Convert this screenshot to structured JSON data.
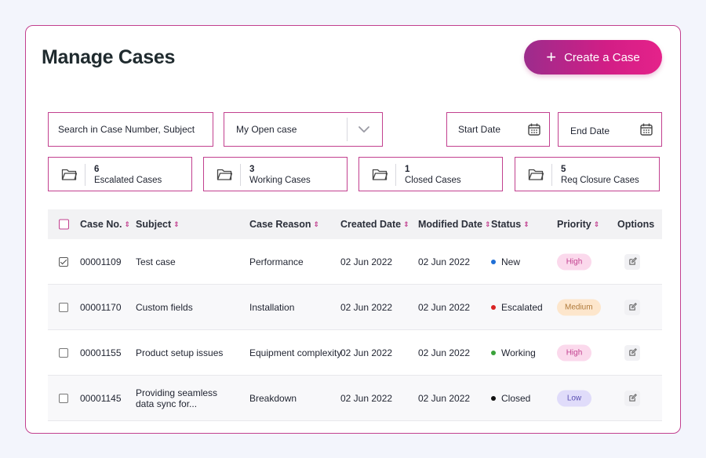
{
  "header": {
    "title": "Manage Cases",
    "create_button_label": "Create a Case"
  },
  "filters": {
    "search_placeholder": "Search in Case Number, Subject",
    "view_select_value": "My Open case",
    "start_date_label": "Start Date",
    "end_date_label": "End Date"
  },
  "stats": [
    {
      "count": "6",
      "label": "Escalated Cases"
    },
    {
      "count": "3",
      "label": "Working Cases"
    },
    {
      "count": "1",
      "label": "Closed Cases"
    },
    {
      "count": "5",
      "label": "Req Closure Cases"
    }
  ],
  "table": {
    "columns": {
      "case_no": "Case No.",
      "subject": "Subject",
      "case_reason": "Case Reason",
      "created_date": "Created Date",
      "modified_date": "Modified Date",
      "status": "Status",
      "priority": "Priority",
      "options": "Options"
    },
    "rows": [
      {
        "checked": true,
        "case_no": "00001109",
        "subject": "Test case",
        "reason": "Performance",
        "created": "02 Jun 2022",
        "modified": "02 Jun 2022",
        "status": "New",
        "priority": "High"
      },
      {
        "checked": false,
        "case_no": "00001170",
        "subject": "Custom fields",
        "reason": "Installation",
        "created": "02 Jun 2022",
        "modified": "02 Jun 2022",
        "status": "Escalated",
        "priority": "Medium"
      },
      {
        "checked": false,
        "case_no": "00001155",
        "subject": "Product setup issues",
        "reason": "Equipment complexity",
        "created": "02 Jun 2022",
        "modified": "02 Jun 2022",
        "status": "Working",
        "priority": "High"
      },
      {
        "checked": false,
        "case_no": "00001145",
        "subject": "Providing seamless data sync for...",
        "reason": "Breakdown",
        "created": "02 Jun 2022",
        "modified": "02 Jun 2022",
        "status": "Closed",
        "priority": "Low"
      }
    ]
  },
  "colors": {
    "accent": "#c2408f",
    "status_new": "#1f6fd6",
    "status_escalated": "#d92323",
    "status_working": "#3aa23a",
    "status_closed": "#111111",
    "priority_high_bg": "#fbd9ec",
    "priority_high_text": "#c2408f",
    "priority_medium_bg": "#fde6cc",
    "priority_medium_text": "#b07a3a",
    "priority_low_bg": "#e0dcfa",
    "priority_low_text": "#5a4fb3"
  }
}
